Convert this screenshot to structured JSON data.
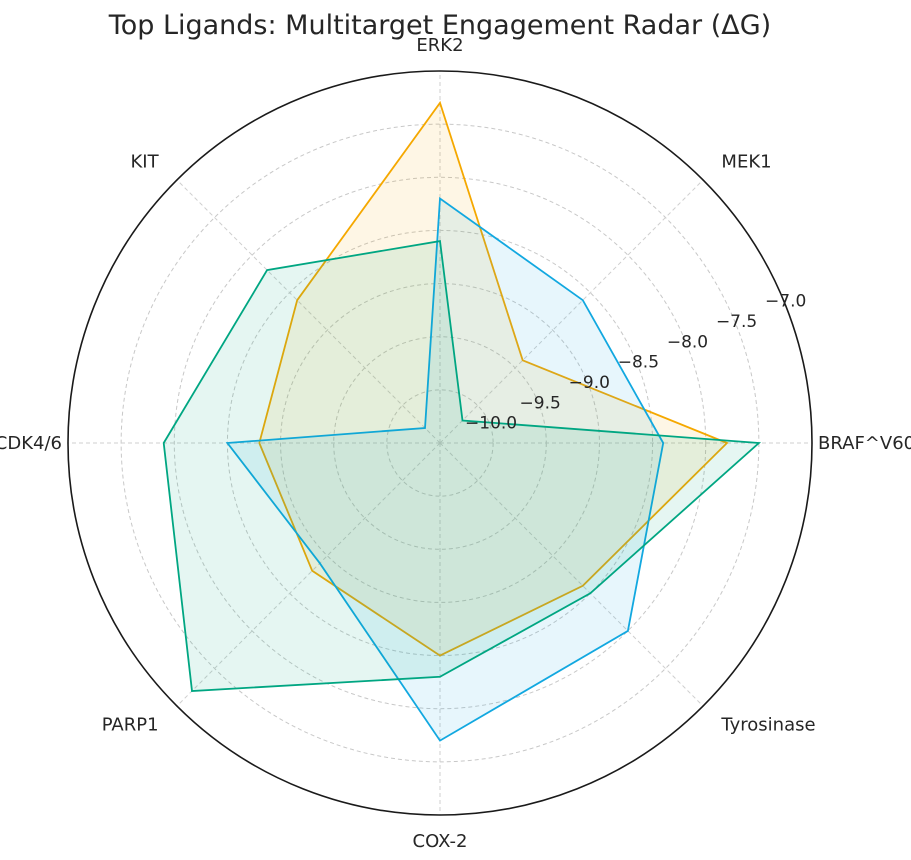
{
  "chart_data": {
    "type": "radar",
    "title": "Top Ligands: Multitarget Engagement Radar (ΔG)",
    "axes": [
      "BRAF^V600E",
      "MEK1",
      "ERK2",
      "KIT",
      "CDK4/6",
      "PARP1",
      "COX-2",
      "Tyrosinase"
    ],
    "rlim": [
      -10.5,
      -7.0
    ],
    "r_ticks": [
      -10.0,
      -9.5,
      -9.0,
      -8.5,
      -8.0,
      -7.5,
      -7.0
    ],
    "r_tick_labels": [
      "−10.0",
      "−9.5",
      "−9.0",
      "−8.5",
      "−8.0",
      "−7.5",
      "−7.0"
    ],
    "grid": true,
    "series": [
      {
        "color": "#f5a800",
        "values": [
          -7.8,
          -9.4,
          -7.3,
          -8.6,
          -8.8,
          -8.8,
          -8.5,
          -8.6
        ]
      },
      {
        "color": "#12a8e0",
        "values": [
          -8.4,
          -8.6,
          -8.2,
          -10.3,
          -8.5,
          -8.9,
          -7.7,
          -8.0
        ]
      },
      {
        "color": "#00a682",
        "values": [
          -7.5,
          -10.2,
          -8.6,
          -8.2,
          -7.9,
          -7.2,
          -8.3,
          -8.5
        ]
      }
    ]
  }
}
